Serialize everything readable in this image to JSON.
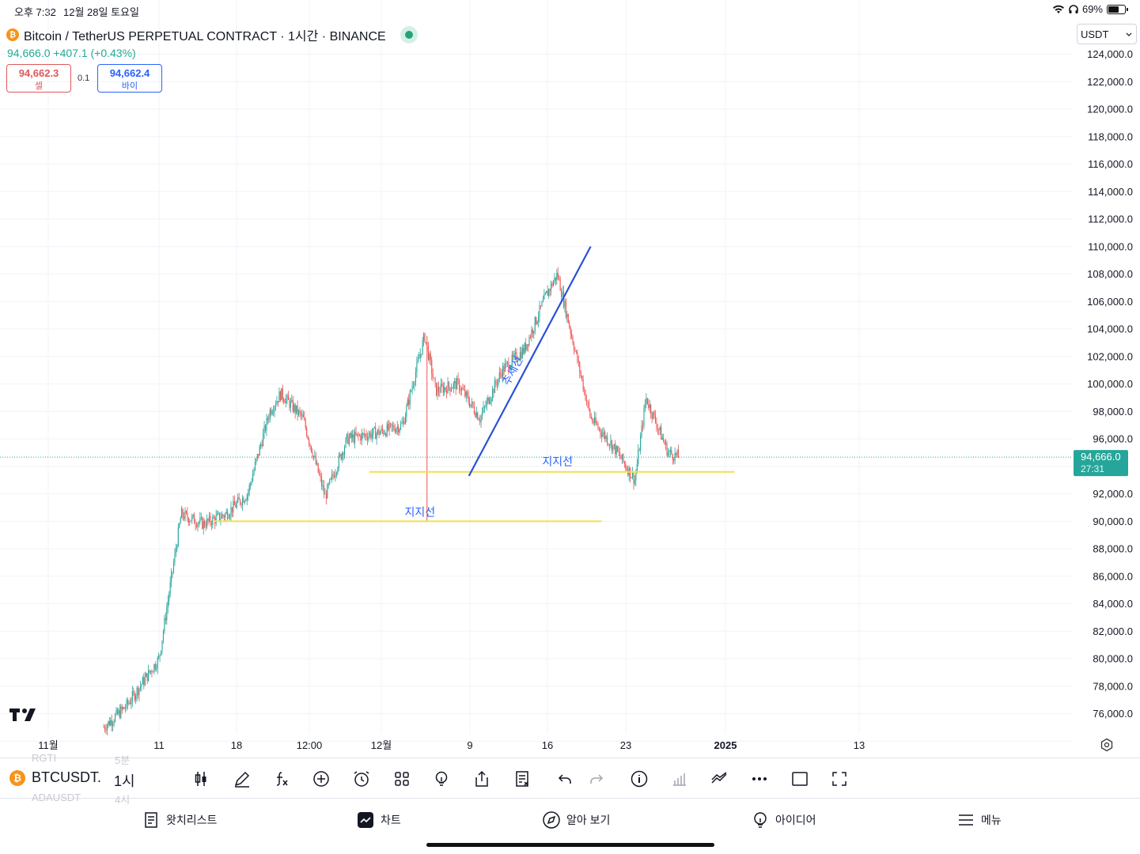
{
  "status": {
    "time": "오후 7:32",
    "date": "12월 28일 토요일",
    "battery": "69%",
    "battery_level": 0.69
  },
  "header": {
    "title": "Bitcoin / TetherUS PERPETUAL CONTRACT · 1시간 · BINANCE",
    "price": "94,666.0",
    "change": "+407.1 (+0.43%)",
    "sell_price": "94,662.3",
    "sell_label": "셀",
    "spread": "0.1",
    "buy_price": "94,662.4",
    "buy_label": "바이",
    "currency": "USDT"
  },
  "price_axis": [
    "124,000.0",
    "122,000.0",
    "120,000.0",
    "118,000.0",
    "116,000.0",
    "114,000.0",
    "112,000.0",
    "110,000.0",
    "108,000.0",
    "106,000.0",
    "104,000.0",
    "102,000.0",
    "100,000.0",
    "98,000.0",
    "96,000.0",
    "92,000.0",
    "90,000.0",
    "88,000.0",
    "86,000.0",
    "84,000.0",
    "82,000.0",
    "80,000.0",
    "78,000.0",
    "76,000.0"
  ],
  "current_price_tag": {
    "price": "94,666.0",
    "countdown": "27:31"
  },
  "time_axis": [
    "11월",
    "11",
    "18",
    "12:00",
    "12월",
    "9",
    "16",
    "23",
    "2025",
    "13"
  ],
  "drawings": {
    "support_label_1": "지지선",
    "support_label_2": "지지선",
    "trend_label": "추세선"
  },
  "colors": {
    "up": "#26a69a",
    "down": "#ef5350",
    "support": "#f5e04a",
    "trend": "#2950d8",
    "label": "#2962ff"
  },
  "toolbar": {
    "symbol": "BTCUSDT.",
    "interval": "1시",
    "ghost_above": "RGTI",
    "ghost_above_interval": "5분",
    "ghost_below": "ADAUSDT",
    "ghost_below_interval": "4시"
  },
  "nav": {
    "watchlist": "왓치리스트",
    "chart": "차트",
    "explore": "알아 보기",
    "ideas": "아이디어",
    "menu": "메뉴"
  },
  "chart_data": {
    "type": "candlestick",
    "symbol": "BTCUSDT.P",
    "interval": "1h",
    "x": [
      "2024-11-06",
      "2024-11-08",
      "2024-11-11",
      "2024-11-13",
      "2024-11-15",
      "2024-11-17",
      "2024-11-19",
      "2024-11-21",
      "2024-11-22",
      "2024-11-24",
      "2024-11-26",
      "2024-11-28",
      "2024-12-01",
      "2024-12-03",
      "2024-12-05",
      "2024-12-06",
      "2024-12-08",
      "2024-12-10",
      "2024-12-12",
      "2024-12-14",
      "2024-12-16",
      "2024-12-17",
      "2024-12-18",
      "2024-12-20",
      "2024-12-22",
      "2024-12-24",
      "2024-12-25",
      "2024-12-26",
      "2024-12-27",
      "2024-12-28"
    ],
    "values": [
      75000,
      76500,
      80000,
      90500,
      89800,
      90500,
      92000,
      98000,
      99300,
      97500,
      91800,
      96000,
      96500,
      97000,
      103500,
      99500,
      100000,
      97500,
      101000,
      102500,
      106500,
      108000,
      104500,
      97500,
      95500,
      93000,
      99000,
      97000,
      95000,
      94666
    ],
    "ylim": [
      75000,
      125000
    ],
    "support_levels": [
      90000,
      93600
    ],
    "trendline": {
      "from": [
        "2024-12-09",
        93300
      ],
      "to": [
        "2024-12-20",
        110000
      ]
    },
    "last_price": 94666
  }
}
